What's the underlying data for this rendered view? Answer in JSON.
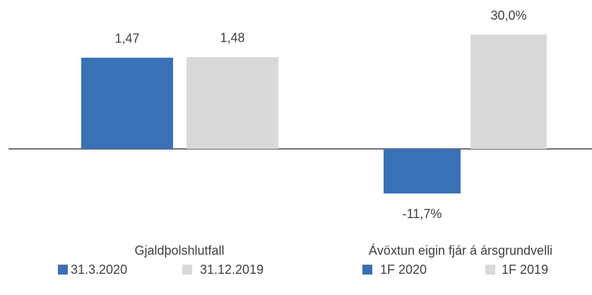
{
  "chart_data": [
    {
      "type": "bar",
      "categories": [
        "Gjaldþolshlutfall"
      ],
      "series": [
        {
          "name": "31.3.2020",
          "color": "#3a70b5",
          "values": [
            1.47
          ],
          "value_labels": [
            "1,47"
          ]
        },
        {
          "name": "31.12.2019",
          "color": "#d9d9d9",
          "values": [
            1.48
          ],
          "value_labels": [
            "1,48"
          ]
        }
      ],
      "ylim": [
        -1.23,
        2.15
      ]
    },
    {
      "type": "bar",
      "categories": [
        "Ávöxtun eigin fjár á ársgrundvelli"
      ],
      "series": [
        {
          "name": "1F 2020",
          "color": "#3a70b5",
          "values": [
            -11.7
          ],
          "value_labels": [
            "-11,7%"
          ]
        },
        {
          "name": "1F 2019",
          "color": "#d9d9d9",
          "values": [
            30.0
          ],
          "value_labels": [
            "30,0%"
          ]
        }
      ],
      "ylim": [
        -20,
        35
      ]
    }
  ]
}
